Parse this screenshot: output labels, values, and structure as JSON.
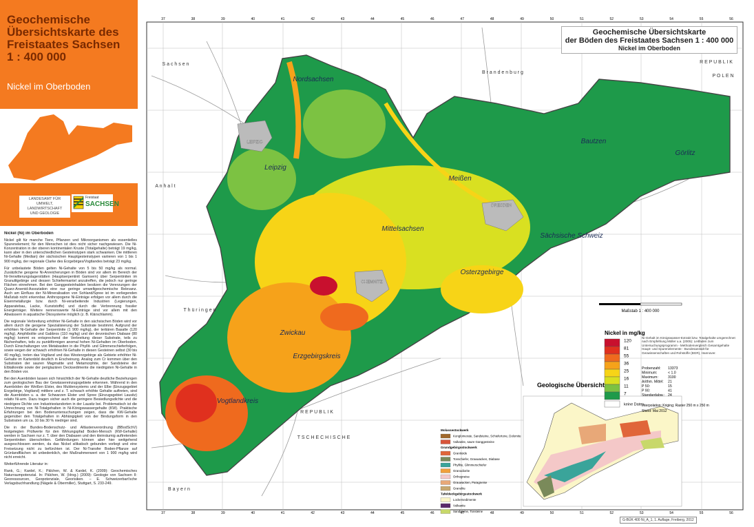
{
  "header": {
    "title_lines": [
      "Geochemische",
      "Übersichtskarte des",
      "Freistaates Sachsen",
      "1 : 400 000"
    ],
    "subtitle": "Nickel im Oberboden"
  },
  "agency": {
    "lines": [
      "LANDESAMT FÜR UMWELT,",
      "LANDWIRTSCHAFT",
      "UND GEOLOGIE"
    ],
    "logo_small": "Freistaat",
    "logo_big": "SACHSEN"
  },
  "text": {
    "heading": "Nickel (Ni) im Oberboden",
    "paragraphs": [
      "Nickel gilt für manche Tiere, Pflanzen und Mikroorganismen als essentielles Spurenelement; für den Menschen ist dies nicht sicher nachgewiesen. Die Ni-Konzentration in der oberen kontinentalen Kruste (Totalgehalte) beträgt 19 mg/kg, kann aber in den unterschiedlichen Gesteinstypen stark schwanken. Die mittleren Ni-Gehalte (Median) der sächsischen Hauptgesteinstypen variieren von 1 bis 1 900 mg/kg, der regionale Clarke des Erzgebirges/Vogtlandes beträgt 23 mg/kg.",
      "Für unbelastete Böden gelten Ni-Gehalte von 5 bis 50 mg/kg als normal. Zusätzliche geogene Ni-Anreicherungen in Böden sind vor allem im Bereich der Ni-Verwitterungslagerstätten (Hauptserpentinit Gamsern) über Serpentiniten im Granulitgebirge und dessen Schiefermantel anzutreffen, die jedoch nur geringe Flächen einnehmen. Bei den Ganggesteinhalden besitzen die Vererzungen der Quarz-Arsenid-Assoziation eine nur geringe umweltgeochemische Relevanz. Auch am Einfluss der Ni-Mineralisation von Sohland/Spree ist im vorliegenden Maßstab nicht erkennbar. Anthropogene Ni-Einträge erfolgen vor allem durch die Eisenmetallurgie bzw. durch Ni-verarbeitende Industrien (Legierungen, Apparatebau, Lacke, Kunststoffe) und durch die Verbrennung fossiler Energieträger. Weitere nennenswerte Ni-Einträge sind vor allem mit den Abwässern in aquatische Ökosysteme möglich (z. B. Klärschlamm).",
      "Die regionale Verbreitung erhöhter Ni-Gehalte in den sächsischen Böden wird vor allem durch die geogene Spezialisierung der Substrate bestimmt. Aufgrund der erhöhten Ni-Gehalte der Serpentinite (1 900 mg/kg), der tertiären Basalte (120 mg/kg), Amphibolite und Gabbros (110 mg/kg) und der devonischen Diabase (80 mg/kg) kommt es entsprechend der Verbreitung dieser Substrate, teils zu flächenhaften, teils zu punktförmigen anomal hohen Ni-Gehalten im Oberboden. Durch Einschaltungen von Metabasiten in die Phyllit- und Glimmerschieferfolgen, sowie wegen der schwach erhöhten Ni-Gehalte in diesen Gesteinen selbst (30 bis 40 mg/kg), treten das Vogtland und das Westerzgebirge als Gebiete erhöhter Ni-Gehalte im Kartenbild deutlich in Erscheinung. Analog zum Cr kommen über den Substraten der sauren Magmatite und Metamorphite, der Sandsteine der Elbtalkreide sowie der periglazären Decksedimente die niedrigsten Ni-Gehalte in den Böden vor.",
      "Bei den Auenböden lassen sich hinsichtlich der Ni-Gehalte deutliche Beziehungen zum geologischen Bau der Gewässereinzugsgebiete erkennen. Während in den Auenböden der Weißen Elster, des Muldensystems und der Elbe (Einzugsgebiet Erzgebirge, Vogtland) mittlere und z. T. schwach erhöhte Gehalte auftreten, sind die Auenböden u. a. der Schwarzen Elster und Spree (Einzugsgebiet Lausitz) relativ Ni-arm. Dazu tragen sicher auch die geringere Besiedlungsdichte und die niedrigere Dichte von Industriestandorten in der Lausitz bei. Problematisch ist die Umrechnung von Ni-Totalgehalten in Ni-Königswassergehalte (KW). Praktische Erfahrungen bei den Bodenuntersuchungen zeigen, dass die KW-Gehalte gegenüber den Totalgehalten in Abhängigkeit von der Bindungsform in den Substraten um ca. 10 bis 30 % niedriger sind.",
      "Die in der Bundes-Bodenschutz- und Altlastenverordnung (BBodSchV) festgelegten Prüfwerte für den Wirkungspfad Boden-Mensch (KW-Gehalte) werden in Sachsen nur z. T. über den Diabasen und den kleinräumig auftretenden Serpentiniten überschritten. Gefährdungen können aber hier weitgehend ausgeschlossen werden, da das Nickel silikatisch gebunden vorliegt und eine Freisetzung nicht zu befürchten ist. Der Ni-Transfer Boden-Pflanze auf Grünlandflächen ist unbedenklich, der Maßnahmenwert von 1 900 mg/kg wird nicht erreicht.",
      "Weiterführende Literatur in:",
      "Rank, G.; Kardel, K.; Pälchen, W. & Kardel, K. (2009): Geochemisches Naturraumpotenzial. In: Pälchen, W. (Hrsg.) (2009): Geologie von Sachsen II: Georessourcen, Geopotenziale, Georisiken. – E. Schweizerbart'sche Verlagsbuchhandlung (Nägele & Obermiller), Stuttgart, S. 233-249."
    ]
  },
  "map": {
    "title_lines": [
      "Geochemische Übersichtskarte",
      "der Böden des Freistaates Sachsen 1 : 400 000"
    ],
    "subtitle": "Nickel im Oberboden",
    "grid_labels": [
      "37",
      "38",
      "39",
      "40",
      "41",
      "42",
      "43",
      "44",
      "45",
      "46",
      "47",
      "48",
      "49",
      "50",
      "51",
      "52",
      "53",
      "54",
      "55",
      "56"
    ],
    "regions": [
      "Nordsachsen",
      "Leipzig",
      "Meißen",
      "Bautzen",
      "Görlitz",
      "Mittelsachsen",
      "Sächsische Schweiz",
      "Osterzgebirge",
      "Zwickau",
      "Erzgebirgskreis",
      "Vogtlandkreis"
    ],
    "cities": [
      "LEIPZIG",
      "DRESDEN",
      "CHEMNITZ"
    ],
    "neighbors": [
      "S a c h s e n",
      "A n h a l t",
      "B r a n d e n b u r g",
      "R E P U B L I K",
      "P O L E N",
      "T h ü r i n g e n",
      "T S C H E C H I S C H E",
      "R E P U B L I K",
      "B a y e r n"
    ],
    "scale": "Maßstab 1 : 400 000"
  },
  "legend": {
    "title": "Nickel in mg/kg",
    "classes": [
      {
        "label": "120",
        "color": "#c8102e"
      },
      {
        "label": "81",
        "color": "#e0301e"
      },
      {
        "label": "55",
        "color": "#ef6a1e"
      },
      {
        "label": "36",
        "color": "#f6a21a"
      },
      {
        "label": "25",
        "color": "#f7d417"
      },
      {
        "label": "16",
        "color": "#d9e021"
      },
      {
        "label": "11",
        "color": "#7cc242"
      },
      {
        "label": "7",
        "color": "#1e9a4a"
      }
    ],
    "nodata": "keine Daten",
    "note": "Ni-Gehalt im Königswasser-Extrakt bzw. Totalgehalte umgerechnet nach Empfehlung Müller u.a. (2005): Leitfaden zum Untersuchungsprogramm - Methodenvergleich Gesamtgehalte Haupt- und Spurenelemente - Bundesanstalt für Geowissenschaften und Rohstoffe (BGR), Hannover.",
    "stats": [
      [
        "Probenzahl:",
        "13373"
      ],
      [
        "Minimum:",
        "< 1.0"
      ],
      [
        "Maximum:",
        "3100"
      ],
      [
        "Arithm. Mittel:",
        "21"
      ],
      [
        "P 50:",
        "15"
      ],
      [
        "P 90:",
        "41"
      ],
      [
        "Standardabw.:",
        "24"
      ]
    ],
    "interpolation": "Interpolation: Kriging; Raster 250 m x 250 m",
    "stand": "Stand: Mai 2012"
  },
  "geology": {
    "title": "Geologische Übersicht",
    "groups": [
      {
        "heading": "Molassestockwerk",
        "items": [
          {
            "label": "Konglomerate, Sandsteine, Schiefertone, Dolomite",
            "color": "#a0682c"
          },
          {
            "label": "Vulkanite, saure Ganggesteine",
            "color": "#d8553a"
          }
        ]
      },
      {
        "heading": "Grundgebirgsstockwerk",
        "items": [
          {
            "label": "Granitoide",
            "color": "#e0663a"
          },
          {
            "label": "Tonschiefer, Grauwacken, Diabase",
            "color": "#7a8a5a"
          },
          {
            "label": "Phyllite, Glimmerschiefer",
            "color": "#3aa49a"
          },
          {
            "label": "Granodiorite",
            "color": "#f0a03c"
          },
          {
            "label": "Orthogneise",
            "color": "#f4c8c8"
          },
          {
            "label": "Grauwacken, Paragneise",
            "color": "#e8a878"
          },
          {
            "label": "Granulite",
            "color": "#c8a870"
          }
        ]
      },
      {
        "heading": "Tafeldeckgebirgsstockwerk",
        "items": [
          {
            "label": "Lockersedimente",
            "color": "#fbf6c8"
          },
          {
            "label": "Vulkanite",
            "color": "#5a2a6a"
          },
          {
            "label": "Sandsteine, Tonsteine",
            "color": "#c8d86a"
          }
        ]
      }
    ]
  },
  "footer": "G-BÜK 400 Ni_A_1, 1. Auflage, Freiberg, 2012"
}
